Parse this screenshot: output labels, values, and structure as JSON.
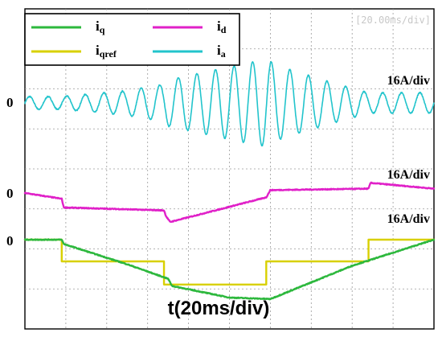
{
  "chart_data": {
    "type": "line",
    "title": "",
    "xlabel": "t(20ms/div)",
    "time_per_div_readout": "[20.00ms/div]",
    "x_divisions": 10,
    "x_unit": "ms",
    "x_range": [
      0,
      200
    ],
    "grid": true,
    "legend_placement": "top-left",
    "zero_markers": [
      "0",
      "0",
      "0"
    ],
    "scale_labels": [
      "16A/div",
      "16A/div",
      "16A/div"
    ],
    "series": [
      {
        "name": "iq",
        "legend_main": "i",
        "legend_sub": "q",
        "color": "#2db83d",
        "scale_div": "16A/div",
        "x": [
          0,
          18,
          19,
          50,
          70,
          72,
          100,
          120,
          160,
          200
        ],
        "y": [
          0.0,
          0.0,
          -0.15,
          -0.85,
          -1.35,
          -1.6,
          -2.0,
          -2.05,
          -0.9,
          0.0
        ]
      },
      {
        "name": "iqref",
        "legend_main": "i",
        "legend_sub": "qref",
        "color": "#d8d000",
        "scale_div": "16A/div",
        "x": [
          0,
          18,
          18,
          68,
          68,
          118,
          118,
          168,
          168,
          200
        ],
        "y": [
          0.0,
          0.0,
          -0.75,
          -0.75,
          -1.55,
          -1.55,
          -0.75,
          -0.75,
          0.0,
          0.0
        ]
      },
      {
        "name": "id",
        "legend_main": "i",
        "legend_sub": "d",
        "color": "#e020c8",
        "scale_div": "16A/div",
        "x": [
          0,
          18,
          19,
          68,
          69,
          71,
          118,
          120,
          168,
          169,
          200
        ],
        "y": [
          0.0,
          -0.2,
          -0.5,
          -0.6,
          -0.8,
          -1.0,
          -0.15,
          0.1,
          0.15,
          0.35,
          0.15
        ]
      },
      {
        "name": "ia",
        "legend_main": "i",
        "legend_sub": "a",
        "color": "#22c4cc",
        "scale_div": "16A/div",
        "frequency_per_div": 2.2,
        "envelope_x": [
          0,
          18,
          50,
          68,
          70,
          100,
          110,
          118,
          125,
          150,
          168,
          200
        ],
        "envelope_amp": [
          0.22,
          0.22,
          0.42,
          0.65,
          0.8,
          1.25,
          1.4,
          1.5,
          1.25,
          0.7,
          0.35,
          0.35
        ]
      }
    ]
  }
}
